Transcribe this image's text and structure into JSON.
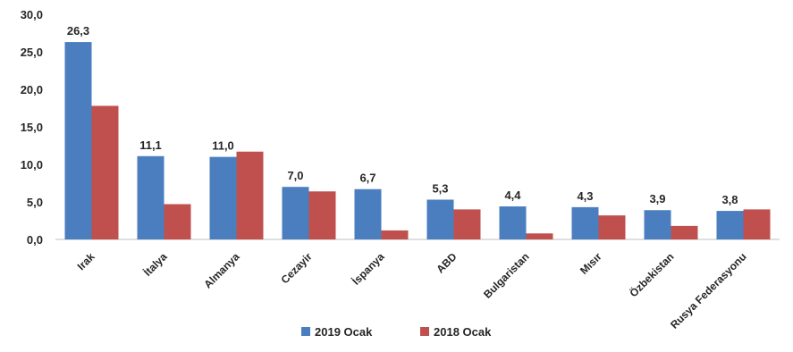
{
  "chart_data": {
    "type": "bar",
    "categories": [
      "Irak",
      "İtalya",
      "Almanya",
      "Cezayir",
      "İspanya",
      "ABD",
      "Bulgaristan",
      "Mısır",
      "Özbekistan",
      "Rusya Federasyonu"
    ],
    "series": [
      {
        "name": "2019 Ocak",
        "color": "#4a7ebf",
        "values": [
          26.3,
          11.1,
          11.0,
          7.0,
          6.7,
          5.3,
          4.4,
          4.3,
          3.9,
          3.8
        ]
      },
      {
        "name": "2018 Ocak",
        "color": "#c0504d",
        "values": [
          17.8,
          4.7,
          11.7,
          6.4,
          1.2,
          4.0,
          0.8,
          3.2,
          1.8,
          4.0
        ]
      }
    ],
    "data_labels": [
      "26,3",
      "11,1",
      "11,0",
      "7,0",
      "6,7",
      "5,3",
      "4,4",
      "4,3",
      "3,9",
      "3,8"
    ],
    "y_ticks": [
      "0,0",
      "5,0",
      "10,0",
      "15,0",
      "20,0",
      "25,0",
      "30,0"
    ],
    "ylim": [
      0,
      30
    ],
    "y_step": 5,
    "legend_position": "bottom",
    "grid": false
  }
}
